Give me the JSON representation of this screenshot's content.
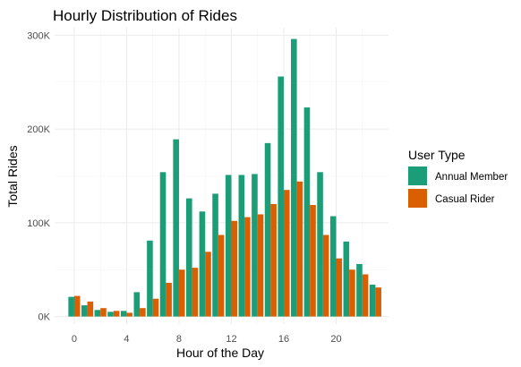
{
  "chart_data": {
    "type": "bar",
    "title": "Hourly Distribution of Rides",
    "xlabel": "Hour of the Day",
    "ylabel": "Total Rides",
    "x": [
      0,
      1,
      2,
      3,
      4,
      5,
      6,
      7,
      8,
      9,
      10,
      11,
      12,
      13,
      14,
      15,
      16,
      17,
      18,
      19,
      20,
      21,
      22,
      23
    ],
    "x_ticks": [
      0,
      4,
      8,
      12,
      16,
      20
    ],
    "x_tick_labels": [
      "0",
      "4",
      "8",
      "12",
      "16",
      "20"
    ],
    "xlim": [
      -1.5,
      24
    ],
    "ylim": [
      -8000,
      308000
    ],
    "y_ticks": [
      0,
      100000,
      200000,
      300000
    ],
    "y_tick_labels": [
      "0K",
      "100K",
      "200K",
      "300K"
    ],
    "grid": true,
    "legend": {
      "title": "User Type",
      "position": "right"
    },
    "series": [
      {
        "name": "Annual Member",
        "color": "#1b9e77",
        "values": [
          21000,
          12000,
          7000,
          5000,
          6000,
          26000,
          81000,
          154000,
          189000,
          126000,
          112000,
          131000,
          151000,
          151000,
          152000,
          185000,
          256000,
          296000,
          223000,
          154000,
          107000,
          80000,
          56000,
          34000
        ]
      },
      {
        "name": "Casual Rider",
        "color": "#d95f02",
        "values": [
          22000,
          16000,
          9000,
          6000,
          4000,
          9000,
          19000,
          36000,
          50000,
          52000,
          69000,
          87000,
          102000,
          106000,
          109000,
          120000,
          135000,
          144000,
          119000,
          87000,
          62000,
          50000,
          45000,
          31000
        ]
      }
    ]
  }
}
